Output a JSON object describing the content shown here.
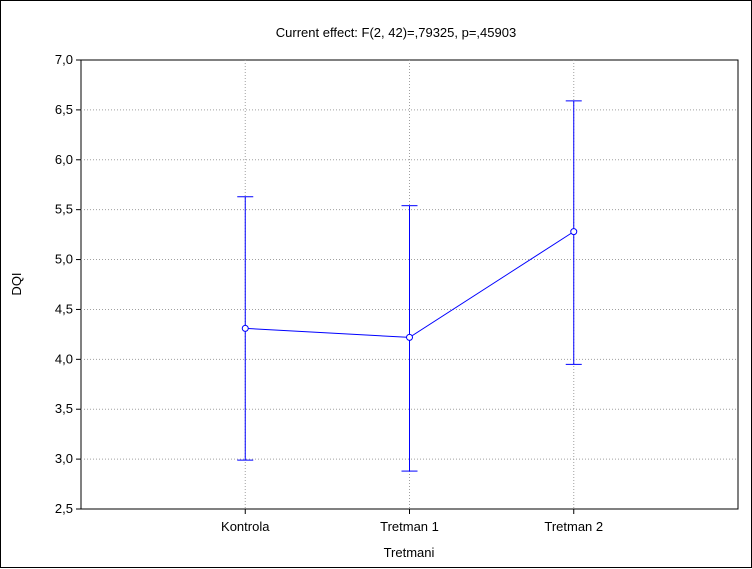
{
  "chart_data": {
    "type": "line",
    "title": "Current effect: F(2, 42)=,79325, p=,45903",
    "xlabel": "Tretmani",
    "ylabel": "DQI",
    "categories": [
      "Kontrola",
      "Tretman 1",
      "Tretman 2"
    ],
    "series": [
      {
        "means": [
          4.31,
          4.22,
          5.28
        ],
        "lower": [
          2.99,
          2.88,
          3.95
        ],
        "upper": [
          5.63,
          5.54,
          6.59
        ]
      }
    ],
    "ylim": [
      2.5,
      7.0
    ],
    "yticks": [
      "2,5",
      "3,0",
      "3,5",
      "4,0",
      "4,5",
      "5,0",
      "5,5",
      "6,0",
      "6,5",
      "7,0"
    ],
    "ytick_values": [
      2.5,
      3.0,
      3.5,
      4.0,
      4.5,
      5.0,
      5.5,
      6.0,
      6.5,
      7.0
    ],
    "grid": true,
    "color": "#0000ff"
  }
}
